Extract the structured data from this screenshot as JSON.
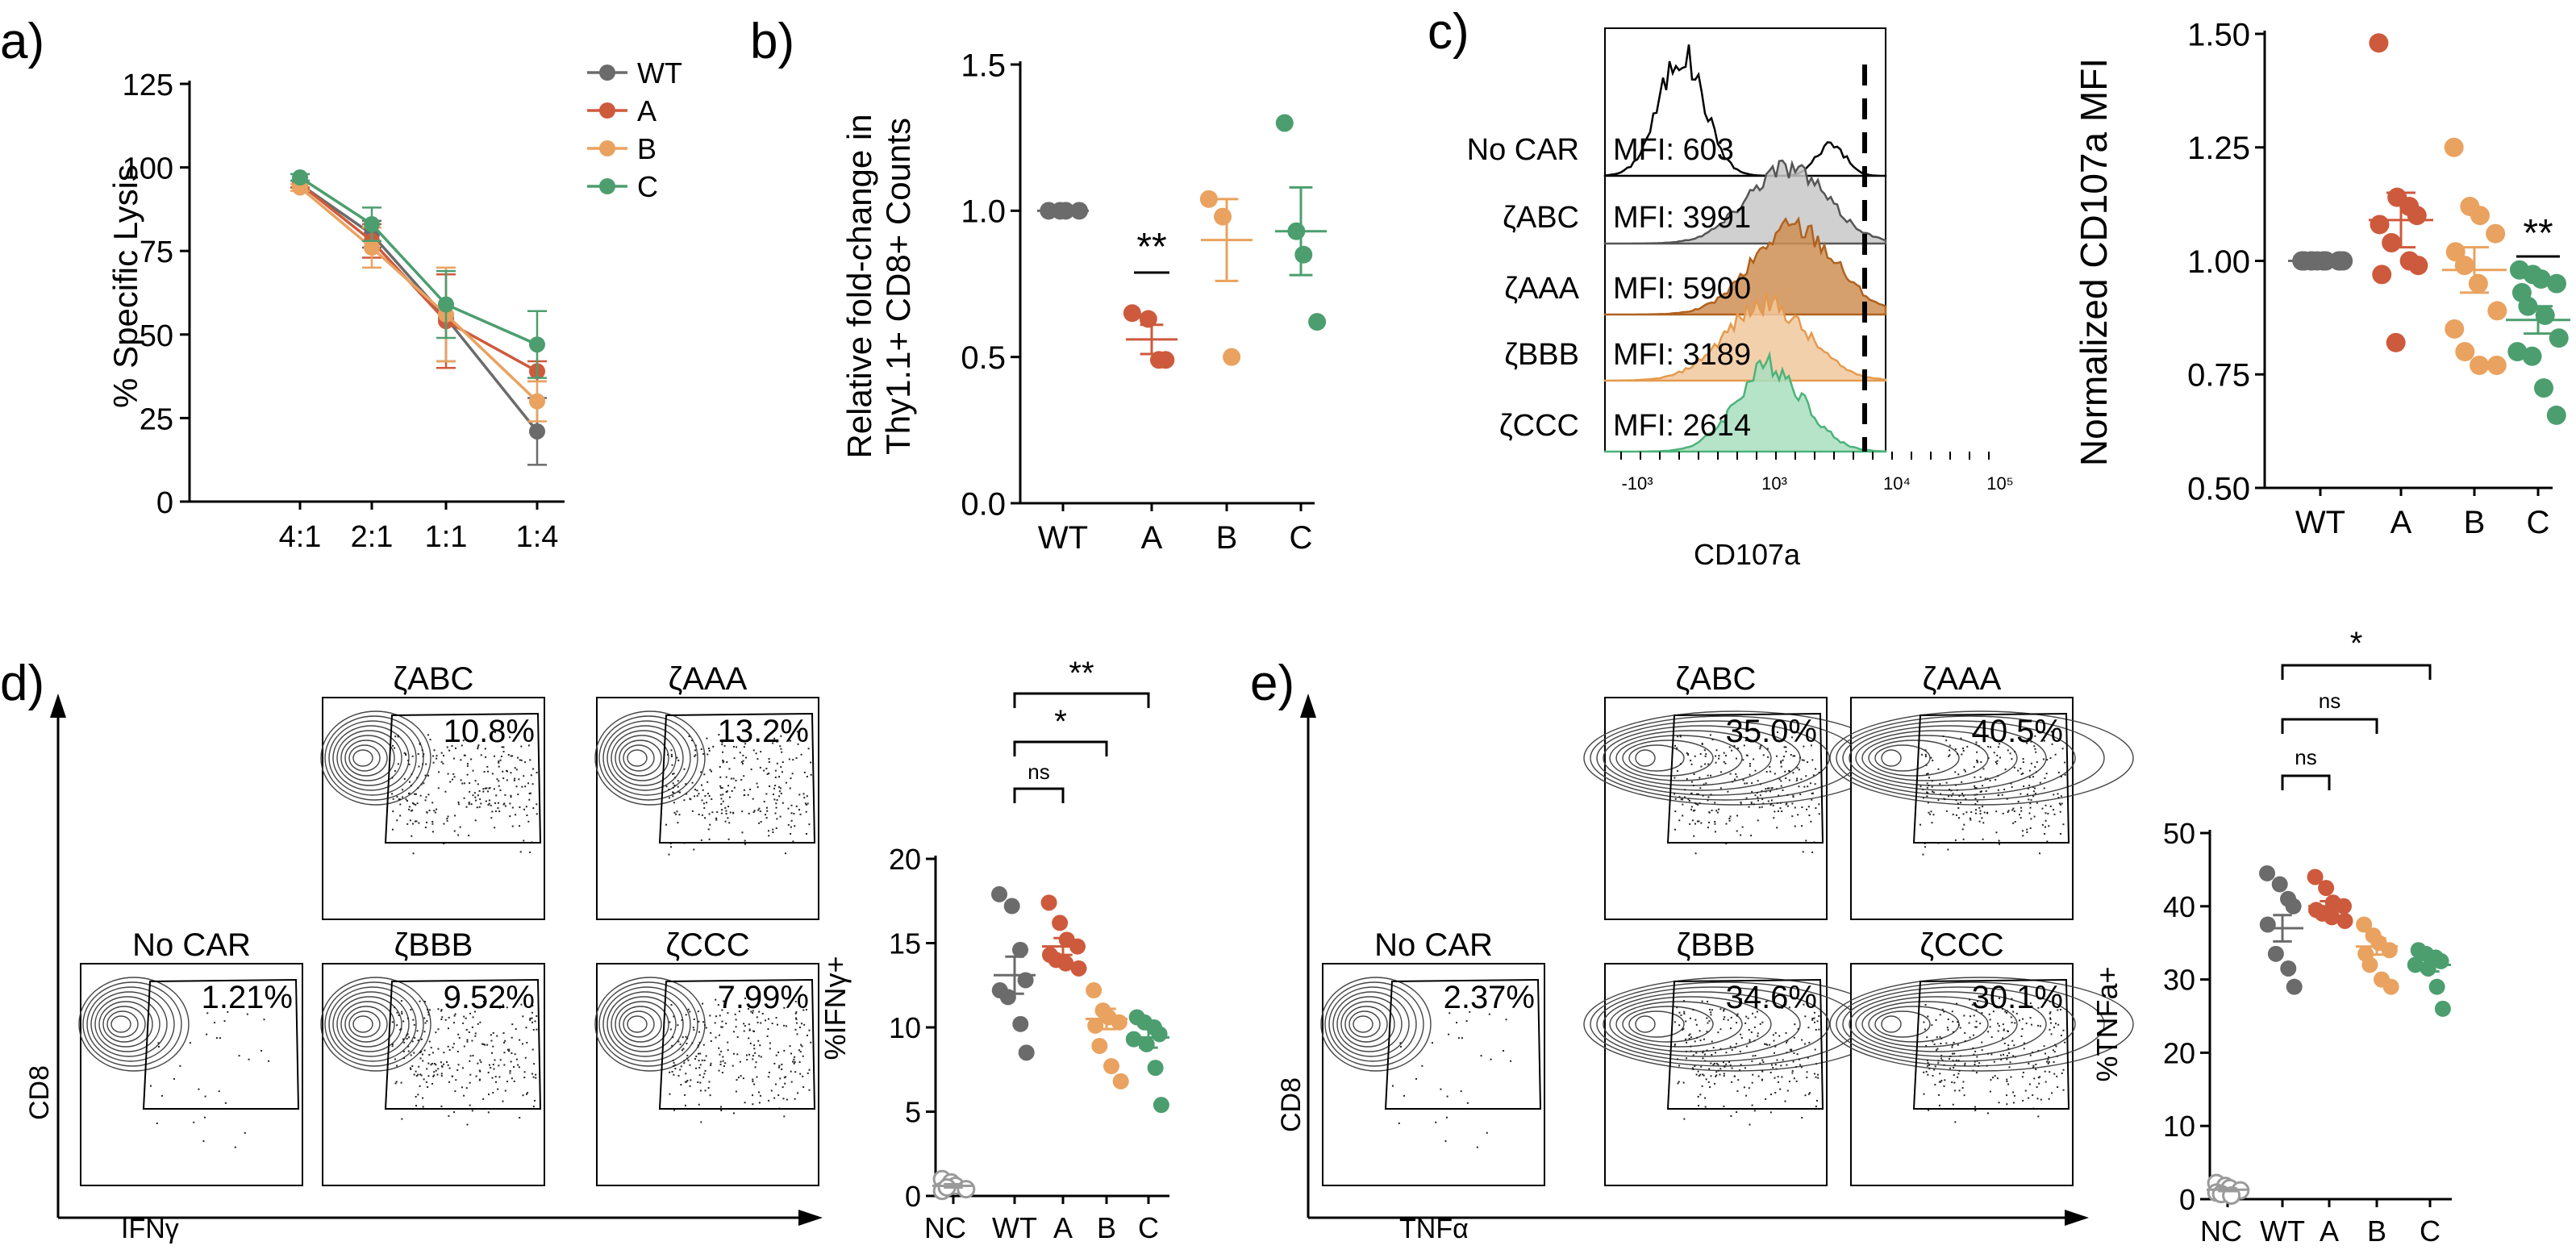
{
  "colors": {
    "WT": "#6b6b6b",
    "A": "#cd5a3c",
    "B": "#e9a25f",
    "C": "#4c9e6f",
    "nc": "#9a9a9a"
  },
  "panel_labels": {
    "a": "a)",
    "b": "b)",
    "c": "c)",
    "d": "d)",
    "e": "e)"
  },
  "chart_data": [
    {
      "id": "a",
      "type": "line",
      "ylabel": "% Specific Lysis",
      "categories": [
        "4:1",
        "2:1",
        "1:1",
        "1:4"
      ],
      "yticks": [
        0,
        25,
        50,
        75,
        100,
        125
      ],
      "ylim": [
        0,
        125
      ],
      "legend_placement": "top-right",
      "series": [
        {
          "name": "WT",
          "values": [
            95,
            80,
            55,
            21
          ],
          "err": [
            1,
            4,
            13,
            10
          ]
        },
        {
          "name": "A",
          "values": [
            95,
            78,
            54,
            39
          ],
          "err": [
            1,
            5,
            14,
            3
          ]
        },
        {
          "name": "B",
          "values": [
            94,
            76,
            56,
            30
          ],
          "err": [
            1,
            6,
            14,
            6
          ]
        },
        {
          "name": "C",
          "values": [
            97,
            83,
            59,
            47
          ],
          "err": [
            1,
            5,
            10,
            10
          ]
        }
      ]
    },
    {
      "id": "b",
      "type": "scatter",
      "ylabel_line1": "Relative fold-change in",
      "ylabel_line2": "Thy1.1+ CD8+ Counts",
      "categories": [
        "WT",
        "A",
        "B",
        "C"
      ],
      "yticks": [
        "0.0",
        "0.5",
        "1.0",
        "1.5"
      ],
      "ylim": [
        0,
        1.5
      ],
      "groups": [
        {
          "name": "WT",
          "points": [
            1.0,
            1.0,
            1.0,
            1.0
          ],
          "mean": 1.0,
          "sem": 0
        },
        {
          "name": "A",
          "points": [
            0.65,
            0.63,
            0.49,
            0.49
          ],
          "mean": 0.56,
          "sem": 0.05
        },
        {
          "name": "B",
          "points": [
            1.04,
            0.98,
            0.5
          ],
          "mean": 0.9,
          "sem": 0.14
        },
        {
          "name": "C",
          "points": [
            1.3,
            0.93,
            0.85,
            0.62
          ],
          "mean": 0.93,
          "sem": 0.15
        }
      ],
      "significance": [
        {
          "group": "A",
          "label": "**"
        }
      ]
    },
    {
      "id": "c_hist",
      "type": "area",
      "xlabel": "CD107a",
      "xticks": [
        "-10³",
        "10³",
        "10⁴",
        "10⁵"
      ],
      "samples": [
        {
          "name": "No CAR",
          "mfi": "MFI: 603"
        },
        {
          "name": "ζABC",
          "mfi": "MFI: 3991"
        },
        {
          "name": "ζAAA",
          "mfi": "MFI: 5900"
        },
        {
          "name": "ζBBB",
          "mfi": "MFI: 3189"
        },
        {
          "name": "ζCCC",
          "mfi": "MFI: 2614"
        }
      ]
    },
    {
      "id": "c_dot",
      "type": "scatter",
      "ylabel": "Normalized CD107a MFI",
      "categories": [
        "WT",
        "A",
        "B",
        "C"
      ],
      "yticks": [
        "0.50",
        "0.75",
        "1.00",
        "1.25",
        "1.50"
      ],
      "ylim": [
        0.5,
        1.5
      ],
      "groups": [
        {
          "name": "WT",
          "points": [
            1.0,
            1.0,
            1.0,
            1.0,
            1.0,
            1.0,
            1.0,
            1.0,
            1.0,
            1.0,
            1.0,
            1.0
          ],
          "mean": 1.0,
          "sem": 0
        },
        {
          "name": "A",
          "points": [
            1.48,
            1.14,
            1.12,
            1.1,
            1.08,
            1.04,
            1.0,
            0.99,
            0.97,
            0.82
          ],
          "mean": 1.09,
          "sem": 0.06
        },
        {
          "name": "B",
          "points": [
            1.25,
            1.12,
            1.1,
            1.06,
            1.02,
            0.99,
            0.95,
            0.89,
            0.85,
            0.8,
            0.77,
            0.77
          ],
          "mean": 0.98,
          "sem": 0.05
        },
        {
          "name": "C",
          "points": [
            0.98,
            0.97,
            0.96,
            0.95,
            0.93,
            0.9,
            0.88,
            0.83,
            0.8,
            0.79,
            0.72,
            0.66
          ],
          "mean": 0.87,
          "sem": 0.03
        }
      ],
      "significance": [
        {
          "group": "C",
          "label": "**"
        }
      ]
    },
    {
      "id": "d_flow",
      "type": "scatter",
      "xlabel": "IFNγ",
      "ylabel": "CD8",
      "plots": [
        {
          "name": "ζABC",
          "pct": "10.8%"
        },
        {
          "name": "ζAAA",
          "pct": "13.2%"
        },
        {
          "name": "No CAR",
          "pct": "1.21%"
        },
        {
          "name": "ζBBB",
          "pct": "9.52%"
        },
        {
          "name": "ζCCC",
          "pct": "7.99%"
        }
      ]
    },
    {
      "id": "d_dot",
      "type": "scatter",
      "ylabel": "%IFNγ+",
      "categories": [
        "NC",
        "WT",
        "A",
        "B",
        "C"
      ],
      "yticks": [
        0,
        5,
        10,
        15,
        20
      ],
      "ylim": [
        0,
        20
      ],
      "groups": [
        {
          "name": "NC",
          "points": [
            1.0,
            0.8,
            0.6,
            0.4,
            0.3,
            0.5
          ],
          "mean": 0.6,
          "sem": 0.1,
          "hollow": true
        },
        {
          "name": "WT",
          "points": [
            17.9,
            17.2,
            14.6,
            12.8,
            12.2,
            11.8,
            10.2,
            8.5
          ],
          "mean": 13.1,
          "sem": 1.1
        },
        {
          "name": "A",
          "points": [
            17.4,
            16.2,
            15.2,
            14.8,
            14.3,
            14.0,
            13.8,
            13.5
          ],
          "mean": 14.8,
          "sem": 0.5
        },
        {
          "name": "B",
          "points": [
            12.2,
            11.0,
            10.6,
            10.3,
            10.1,
            8.9,
            7.7,
            6.8
          ],
          "mean": 10.5,
          "sem": 0.6
        },
        {
          "name": "C",
          "points": [
            10.6,
            10.3,
            10.0,
            9.6,
            9.3,
            9.0,
            7.6,
            5.4
          ],
          "mean": 9.4,
          "sem": 0.6
        }
      ],
      "brackets": [
        {
          "from": "WT",
          "to": "A",
          "label": "ns"
        },
        {
          "from": "WT",
          "to": "B",
          "label": "*"
        },
        {
          "from": "WT",
          "to": "C",
          "label": "**"
        }
      ]
    },
    {
      "id": "e_flow",
      "type": "scatter",
      "xlabel": "TNFα",
      "ylabel": "CD8",
      "plots": [
        {
          "name": "ζABC",
          "pct": "35.0%"
        },
        {
          "name": "ζAAA",
          "pct": "40.5%"
        },
        {
          "name": "No CAR",
          "pct": "2.37%"
        },
        {
          "name": "ζBBB",
          "pct": "34.6%"
        },
        {
          "name": "ζCCC",
          "pct": "30.1%"
        }
      ]
    },
    {
      "id": "e_dot",
      "type": "scatter",
      "ylabel": "%TNFa+",
      "categories": [
        "NC",
        "WT",
        "A",
        "B",
        "C"
      ],
      "yticks": [
        0,
        10,
        20,
        30,
        40,
        50
      ],
      "ylim": [
        0,
        50
      ],
      "groups": [
        {
          "name": "NC",
          "points": [
            2.2,
            1.8,
            1.5,
            1.2,
            0.9,
            0.7,
            0.5
          ],
          "mean": 1.3,
          "sem": 0.2,
          "hollow": true
        },
        {
          "name": "WT",
          "points": [
            44.5,
            43.0,
            41.0,
            40.0,
            37.5,
            33.5,
            31.5,
            29.0
          ],
          "mean": 37,
          "sem": 1.8
        },
        {
          "name": "A",
          "points": [
            44.0,
            42.5,
            40.5,
            40.0,
            39.5,
            39.0,
            38.5,
            38.0
          ],
          "mean": 40,
          "sem": 0.7
        },
        {
          "name": "B",
          "points": [
            37.5,
            36.0,
            35.0,
            34.0,
            33.5,
            32.0,
            30.0,
            29.0
          ],
          "mean": 34.5,
          "sem": 1.1
        },
        {
          "name": "C",
          "points": [
            34.0,
            33.5,
            33.0,
            32.5,
            32.0,
            31.5,
            29.0,
            26.0
          ],
          "mean": 32,
          "sem": 0.9
        }
      ],
      "brackets": [
        {
          "from": "WT",
          "to": "A",
          "label": "ns"
        },
        {
          "from": "WT",
          "to": "B",
          "label": "ns"
        },
        {
          "from": "WT",
          "to": "C",
          "label": "*"
        }
      ]
    }
  ]
}
